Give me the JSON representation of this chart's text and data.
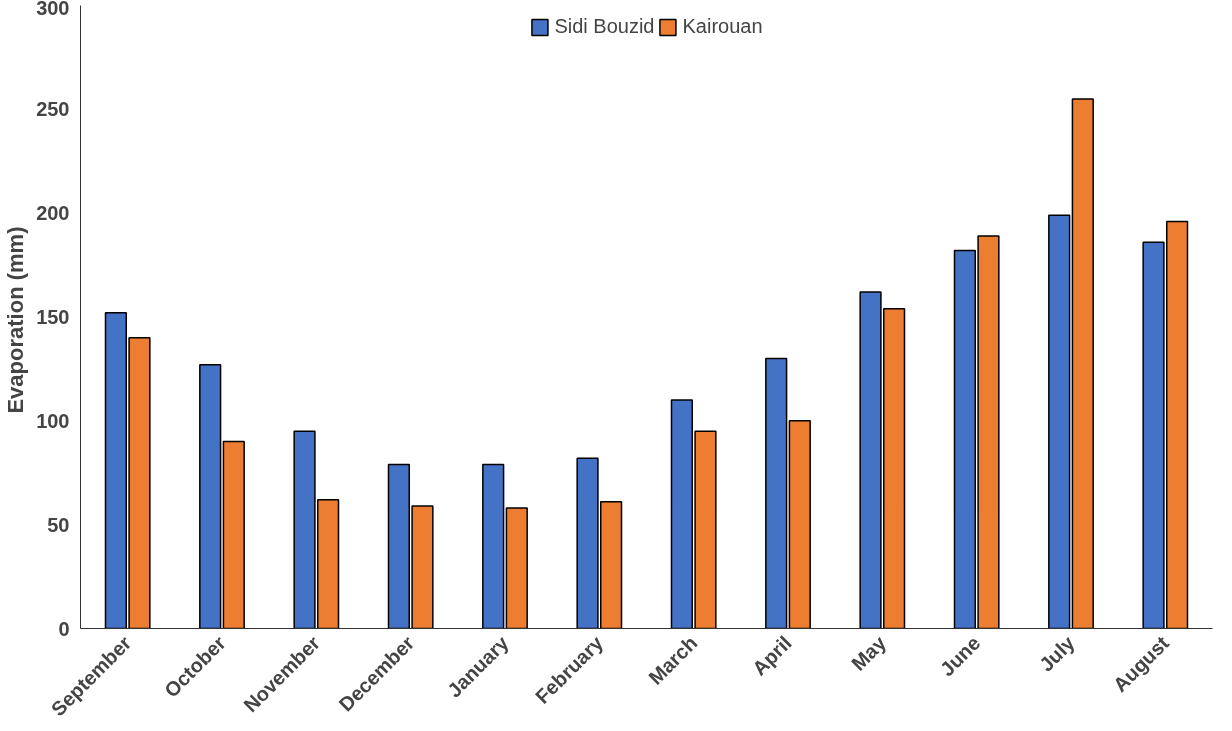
{
  "chart_data": {
    "type": "bar",
    "ylabel": "Evaporation  (mm)",
    "categories": [
      "September",
      "October",
      "November",
      "December",
      "January",
      "February",
      "March",
      "April",
      "May",
      "June",
      "July",
      "August"
    ],
    "series": [
      {
        "name": "Sidi Bouzid",
        "color": "#4472c4",
        "values": [
          152,
          127,
          95,
          79,
          79,
          82,
          110,
          130,
          162,
          182,
          199,
          186
        ]
      },
      {
        "name": "Kairouan",
        "color": "#ed7d31",
        "values": [
          140,
          90,
          62,
          59,
          58,
          61,
          95,
          100,
          154,
          189,
          255,
          196
        ]
      }
    ],
    "ylim": [
      0,
      300
    ],
    "yticks": [
      0,
      50,
      100,
      150,
      200,
      250,
      300
    ],
    "grid": false,
    "legend": "top"
  }
}
